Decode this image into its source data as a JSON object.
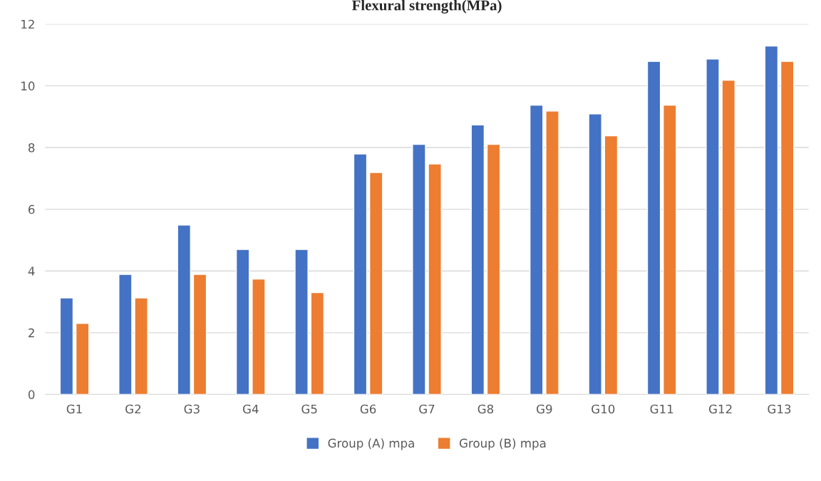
{
  "chart_data": {
    "type": "bar",
    "title": "Flexural strength(MPa)",
    "categories": [
      "G1",
      "G2",
      "G3",
      "G4",
      "G5",
      "G6",
      "G7",
      "G8",
      "G9",
      "G10",
      "G11",
      "G12",
      "G13"
    ],
    "series": [
      {
        "name": "Group (A) mpa",
        "color": "#4472c4",
        "values": [
          3.13,
          3.89,
          5.49,
          4.7,
          4.7,
          7.79,
          8.1,
          8.73,
          9.37,
          9.09,
          10.79,
          10.87,
          11.29
        ]
      },
      {
        "name": "Group (B) mpa",
        "color": "#ed7d31",
        "values": [
          2.3,
          3.13,
          3.89,
          3.74,
          3.3,
          7.19,
          7.47,
          8.1,
          9.18,
          8.38,
          9.37,
          10.18,
          10.79
        ]
      }
    ],
    "ylim": [
      0,
      12
    ],
    "yticks": [
      0,
      2,
      4,
      6,
      8,
      10,
      12
    ],
    "grid": "y",
    "legend": "bottom"
  }
}
